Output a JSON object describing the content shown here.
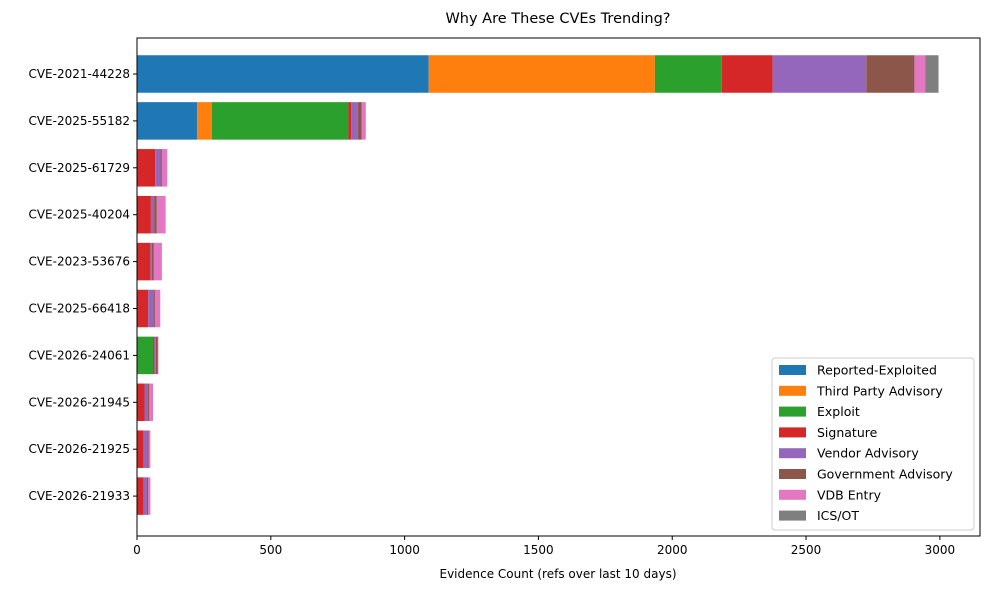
{
  "chart_data": {
    "type": "bar",
    "orientation": "horizontal",
    "stacked": true,
    "title": "Why Are These CVEs Trending?",
    "xlabel": "Evidence Count (refs over last 10 days)",
    "ylabel": "",
    "xlim": [
      0,
      3150
    ],
    "xticks": [
      0,
      500,
      1000,
      1500,
      2000,
      2500,
      3000
    ],
    "legend_position": "lower-right",
    "categories": [
      "CVE-2021-44228",
      "CVE-2025-55182",
      "CVE-2025-61729",
      "CVE-2025-40204",
      "CVE-2023-53676",
      "CVE-2025-66418",
      "CVE-2026-24061",
      "CVE-2026-21945",
      "CVE-2026-21925",
      "CVE-2026-21933"
    ],
    "series": [
      {
        "name": "Reported-Exploited",
        "color": "#1f77b4",
        "values": [
          1090,
          225,
          0,
          0,
          0,
          0,
          0,
          0,
          0,
          0
        ]
      },
      {
        "name": "Third Party Advisory",
        "color": "#ff7f0e",
        "values": [
          845,
          55,
          0,
          0,
          0,
          0,
          0,
          0,
          0,
          0
        ]
      },
      {
        "name": "Exploit",
        "color": "#2ca02c",
        "values": [
          250,
          510,
          0,
          0,
          0,
          0,
          60,
          0,
          0,
          0
        ]
      },
      {
        "name": "Signature",
        "color": "#d62728",
        "values": [
          190,
          10,
          68,
          52,
          50,
          42,
          5,
          28,
          25,
          24
        ]
      },
      {
        "name": "Vendor Advisory",
        "color": "#9467bd",
        "values": [
          350,
          25,
          20,
          12,
          5,
          20,
          5,
          13,
          13,
          13
        ]
      },
      {
        "name": "Government Advisory",
        "color": "#8c564b",
        "values": [
          180,
          15,
          5,
          10,
          8,
          5,
          8,
          5,
          5,
          5
        ]
      },
      {
        "name": "VDB Entry",
        "color": "#e377c2",
        "values": [
          40,
          15,
          20,
          33,
          30,
          20,
          2,
          14,
          7,
          8
        ]
      },
      {
        "name": "ICS/OT",
        "color": "#7f7f7f",
        "values": [
          50,
          0,
          0,
          0,
          0,
          0,
          0,
          0,
          0,
          0
        ]
      }
    ]
  }
}
